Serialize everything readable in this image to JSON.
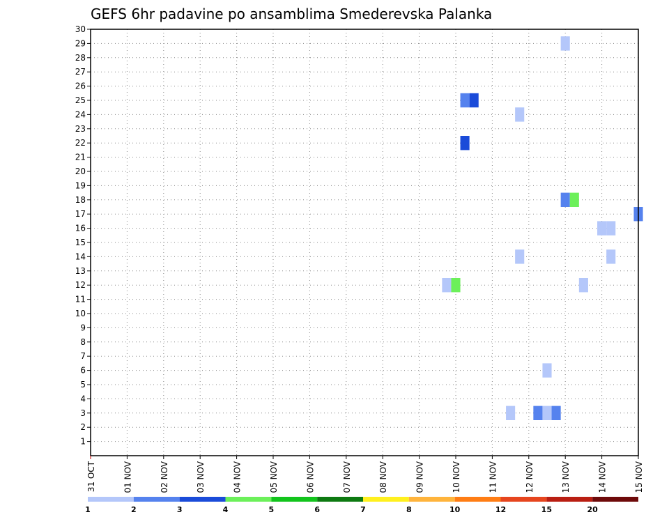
{
  "chart_data": {
    "type": "heatmap",
    "title": "GEFS 6hr padavine po ansamblima Smederevska Palanka",
    "xlabel": "",
    "ylabel": "",
    "x_tick_labels": [
      "31 OCT",
      "01 NOV",
      "02 NOV",
      "03 NOV",
      "04 NOV",
      "05 NOV",
      "06 NOV",
      "07 NOV",
      "08 NOV",
      "09 NOV",
      "10 NOV",
      "11 NOV",
      "12 NOV",
      "13 NOV",
      "14 NOV",
      "15 NOV"
    ],
    "x_range_days": [
      0,
      15
    ],
    "y_tick_labels": [
      "1",
      "2",
      "3",
      "4",
      "5",
      "6",
      "7",
      "8",
      "9",
      "10",
      "11",
      "12",
      "13",
      "14",
      "15",
      "16",
      "17",
      "18",
      "19",
      "20",
      "21",
      "22",
      "23",
      "24",
      "25",
      "26",
      "27",
      "28",
      "29",
      "30"
    ],
    "y_range": [
      0,
      30
    ],
    "grid": true,
    "legend_placement": "bottom",
    "legend": {
      "colors": [
        "#b4c7fa",
        "#5582ee",
        "#1a4bd9",
        "#6cf05a",
        "#12c41c",
        "#0d7a11",
        "#fff01e",
        "#ffb43c",
        "#ff7d14",
        "#e6451e",
        "#b91e12",
        "#6e0a0a"
      ],
      "labels": [
        "1",
        "2",
        "3",
        "4",
        "5",
        "6",
        "7",
        "8",
        "10",
        "12",
        "15",
        "20"
      ]
    },
    "cells": [
      {
        "member": 29,
        "day": 13.0,
        "value": 1
      },
      {
        "member": 25,
        "day": 10.25,
        "value": 2
      },
      {
        "member": 25,
        "day": 10.5,
        "value": 3
      },
      {
        "member": 24,
        "day": 11.75,
        "value": 1
      },
      {
        "member": 22,
        "day": 10.25,
        "value": 3
      },
      {
        "member": 18,
        "day": 13.0,
        "value": 2
      },
      {
        "member": 18,
        "day": 13.25,
        "value": 4
      },
      {
        "member": 17,
        "day": 15.0,
        "value": 2
      },
      {
        "member": 16,
        "day": 14.0,
        "value": 1
      },
      {
        "member": 16,
        "day": 14.25,
        "value": 1
      },
      {
        "member": 14,
        "day": 11.75,
        "value": 1
      },
      {
        "member": 14,
        "day": 14.25,
        "value": 1
      },
      {
        "member": 12,
        "day": 9.75,
        "value": 1
      },
      {
        "member": 12,
        "day": 10.0,
        "value": 4
      },
      {
        "member": 12,
        "day": 13.5,
        "value": 1
      },
      {
        "member": 6,
        "day": 12.5,
        "value": 1
      },
      {
        "member": 3,
        "day": 11.5,
        "value": 1
      },
      {
        "member": 3,
        "day": 12.25,
        "value": 2
      },
      {
        "member": 3,
        "day": 12.5,
        "value": 1
      },
      {
        "member": 3,
        "day": 12.75,
        "value": 2
      }
    ]
  }
}
